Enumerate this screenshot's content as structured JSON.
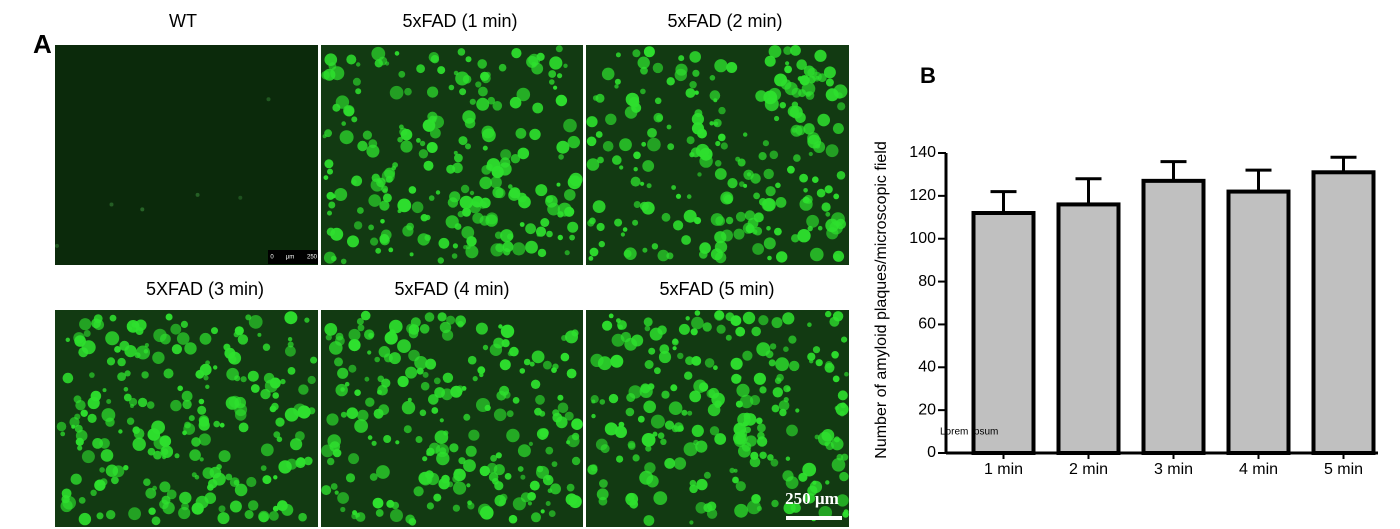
{
  "panel_a": {
    "label": "A",
    "images": [
      "WT",
      "5xFAD (1 min)",
      "5xFAD (2 min)",
      "5XFAD (3 min)",
      "5xFAD (4 min)",
      "5xFAD (5 min)"
    ],
    "wt_scale": [
      "0",
      "µm",
      "250"
    ],
    "scale_bar": "250 µm"
  },
  "chart_data": {
    "type": "bar",
    "panel_label": "B",
    "y_label": "Number of amyloid plaques/microscopic field",
    "annotation": "Lorem Ipsum",
    "categories": [
      "1 min",
      "2 min",
      "3 min",
      "4 min",
      "5 min"
    ],
    "values": [
      112,
      116,
      127,
      122,
      131
    ],
    "errors": [
      10,
      12,
      9,
      10,
      7
    ],
    "color": "#c0c0c0",
    "ylim": [
      0,
      140
    ],
    "yticks": [
      0,
      20,
      40,
      60,
      80,
      100,
      120,
      140
    ],
    "grid": false
  }
}
